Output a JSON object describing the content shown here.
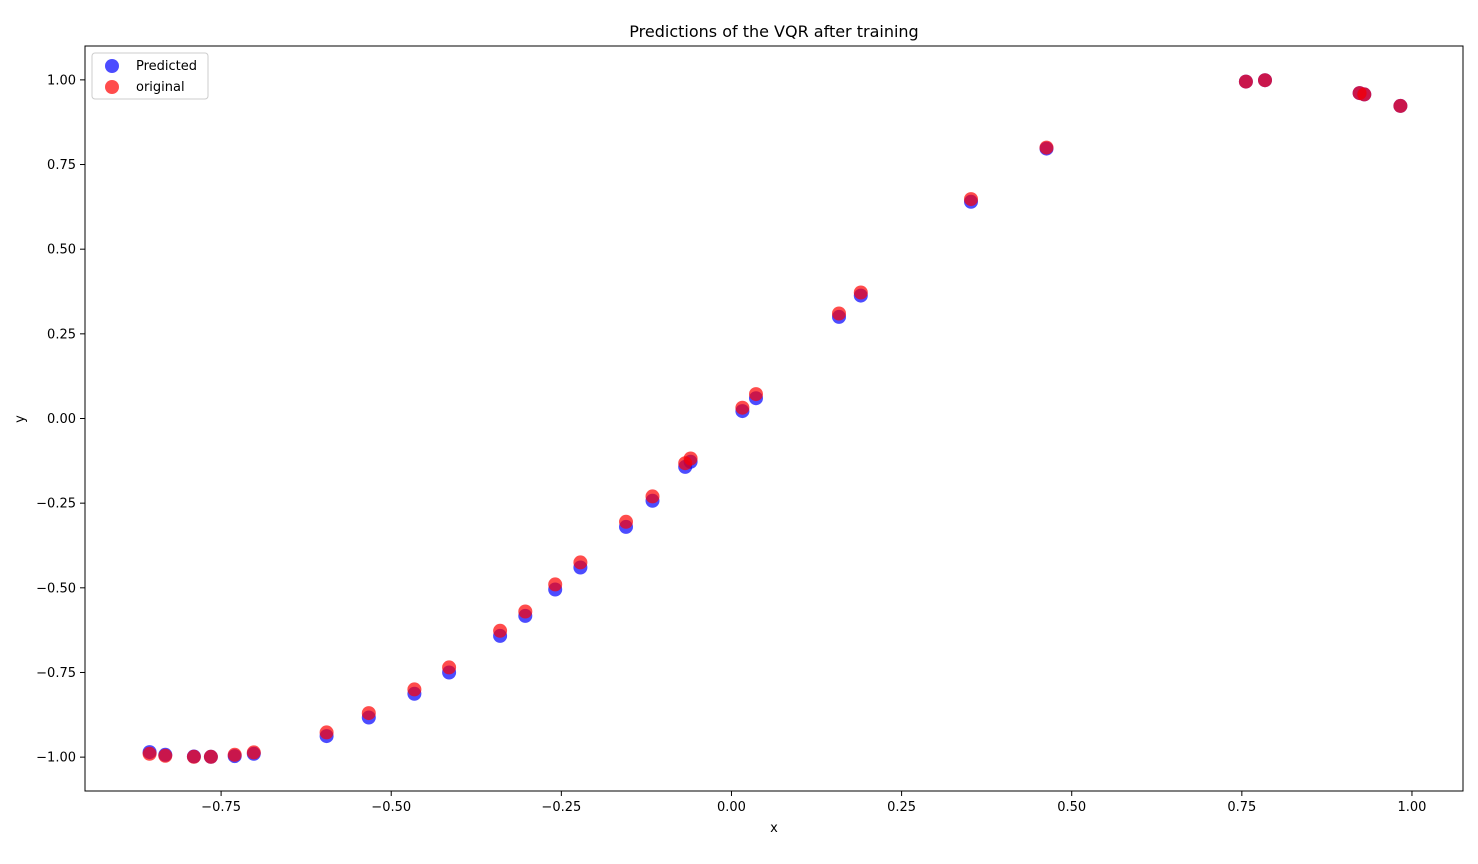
{
  "chart_data": {
    "type": "scatter",
    "title": "Predictions of the VQR after training",
    "xlabel": "x",
    "ylabel": "y",
    "xlim": [
      -0.95,
      1.075
    ],
    "ylim": [
      -1.1,
      1.1
    ],
    "xticks": [
      -0.75,
      -0.5,
      -0.25,
      0.0,
      0.25,
      0.5,
      0.75,
      1.0
    ],
    "xtick_labels": [
      "−0.75",
      "−0.50",
      "−0.25",
      "0.00",
      "0.25",
      "0.50",
      "0.75",
      "1.00"
    ],
    "yticks": [
      -1.0,
      -0.75,
      -0.5,
      -0.25,
      0.0,
      0.25,
      0.5,
      0.75,
      1.0
    ],
    "ytick_labels": [
      "−1.00",
      "−0.75",
      "−0.50",
      "−0.25",
      "0.00",
      "0.25",
      "0.50",
      "0.75",
      "1.00"
    ],
    "grid": false,
    "legend_position": "top-left",
    "series": [
      {
        "name": "Predicted",
        "color": "#0000ff",
        "alpha": 0.7,
        "x": [
          -0.855,
          -0.832,
          -0.79,
          -0.765,
          -0.73,
          -0.702,
          -0.595,
          -0.533,
          -0.466,
          -0.415,
          -0.34,
          -0.303,
          -0.259,
          -0.222,
          -0.155,
          -0.116,
          -0.068,
          -0.06,
          0.016,
          0.036,
          0.158,
          0.19,
          0.352,
          0.463,
          0.756,
          0.784,
          0.923,
          0.93,
          0.983
        ],
        "y": [
          -0.985,
          -0.993,
          -0.998,
          -0.999,
          -0.997,
          -0.99,
          -0.938,
          -0.883,
          -0.813,
          -0.75,
          -0.642,
          -0.583,
          -0.505,
          -0.44,
          -0.32,
          -0.243,
          -0.143,
          -0.128,
          0.022,
          0.06,
          0.3,
          0.363,
          0.64,
          0.797,
          0.995,
          0.999,
          0.961,
          0.957,
          0.923
        ]
      },
      {
        "name": "original",
        "color": "#ff0000",
        "alpha": 0.7,
        "x": [
          -0.855,
          -0.832,
          -0.79,
          -0.765,
          -0.73,
          -0.702,
          -0.595,
          -0.533,
          -0.466,
          -0.415,
          -0.34,
          -0.303,
          -0.259,
          -0.222,
          -0.155,
          -0.116,
          -0.068,
          -0.06,
          0.016,
          0.036,
          0.158,
          0.19,
          0.352,
          0.463,
          0.756,
          0.784,
          0.923,
          0.93,
          0.983
        ],
        "y": [
          -0.99,
          -0.996,
          -0.999,
          -0.999,
          -0.993,
          -0.986,
          -0.927,
          -0.87,
          -0.8,
          -0.735,
          -0.627,
          -0.57,
          -0.49,
          -0.425,
          -0.305,
          -0.23,
          -0.132,
          -0.118,
          0.032,
          0.072,
          0.31,
          0.372,
          0.648,
          0.8,
          0.995,
          0.999,
          0.961,
          0.957,
          0.923
        ]
      }
    ]
  }
}
